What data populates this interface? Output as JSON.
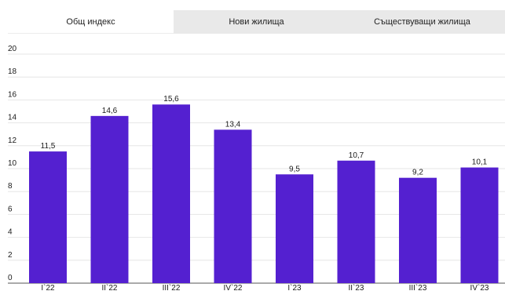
{
  "tabs": [
    {
      "label": "Общ индекс",
      "active": true
    },
    {
      "label": "Нови жилища",
      "active": false
    },
    {
      "label": "Съществуващи жилища",
      "active": false
    }
  ],
  "chart_data": {
    "type": "bar",
    "categories": [
      "I`22",
      "II`22",
      "III`22",
      "IV`22",
      "I`23",
      "II`23",
      "III`23",
      "IV`23"
    ],
    "values": [
      11.5,
      14.6,
      15.6,
      13.4,
      9.5,
      10.7,
      9.2,
      10.1
    ],
    "value_labels": [
      "11,5",
      "14,6",
      "15,6",
      "13,4",
      "9,5",
      "10,7",
      "9,2",
      "10,1"
    ],
    "title": "",
    "xlabel": "",
    "ylabel": "",
    "ylim": [
      0,
      20
    ],
    "yticks": [
      0,
      2,
      4,
      6,
      8,
      10,
      12,
      14,
      16,
      18,
      20
    ],
    "grid": true,
    "bar_color": "#5420d0"
  }
}
